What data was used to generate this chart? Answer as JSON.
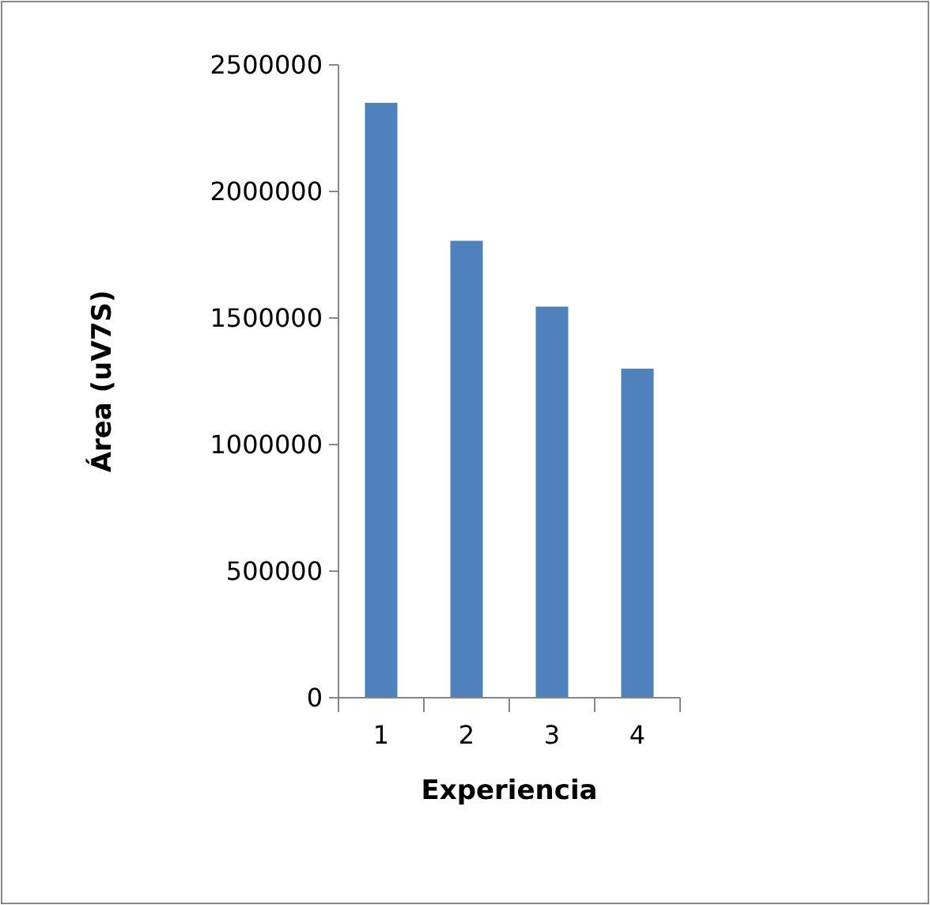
{
  "chart_data": {
    "type": "bar",
    "xlabel": "Experiencia",
    "ylabel": "Área (uV7S)",
    "categories": [
      "1",
      "2",
      "3",
      "4"
    ],
    "values": [
      2350000,
      1805000,
      1545000,
      1300000
    ],
    "color": "#4f81bd",
    "ylim": [
      0,
      2500000
    ],
    "yticks": [
      0,
      500000,
      1000000,
      1500000,
      2000000,
      2500000
    ],
    "grid": false
  }
}
